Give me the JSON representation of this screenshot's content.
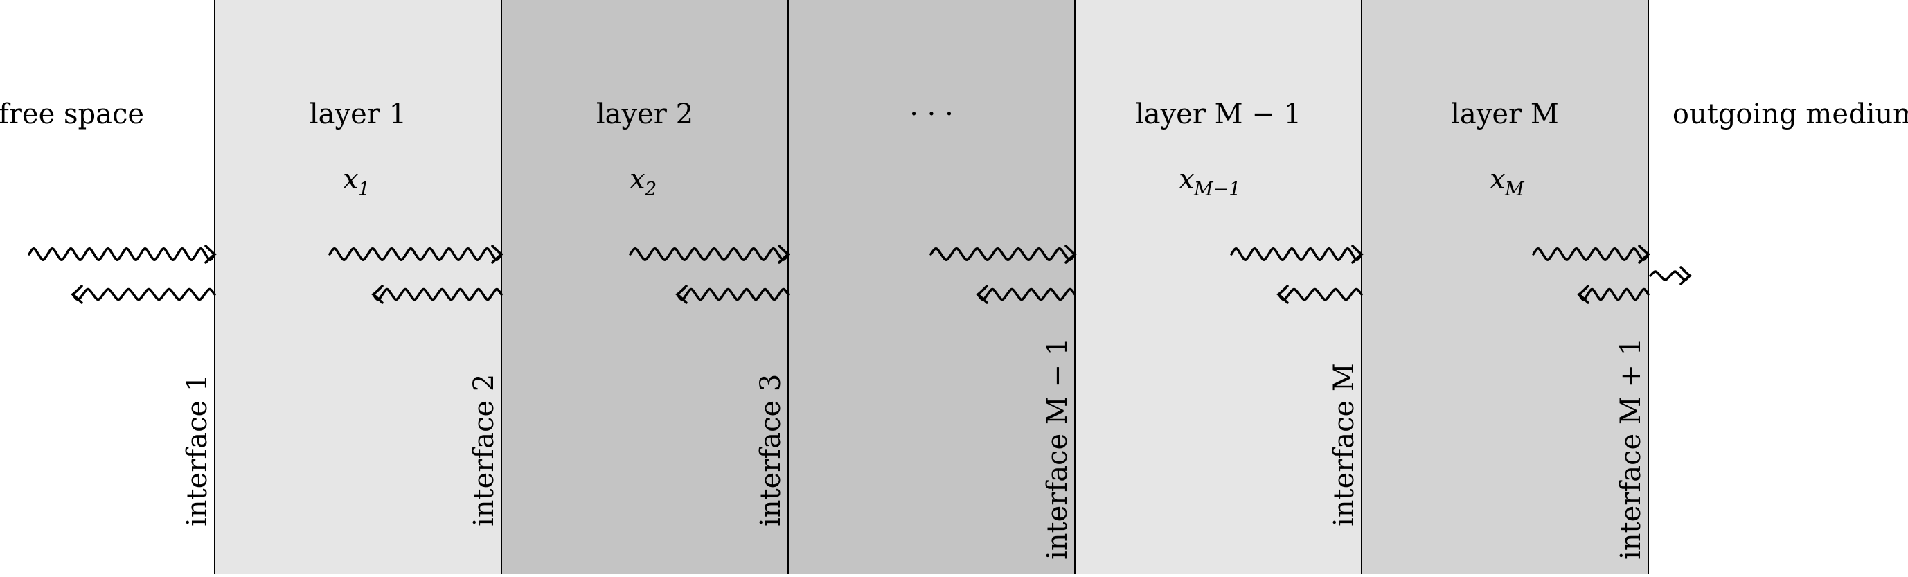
{
  "diagram": {
    "left_medium": "free space",
    "right_medium": "outgoing medium",
    "layers": [
      {
        "label": "layer 1",
        "var": "x",
        "sub": "1",
        "fill": "#e6e6e6"
      },
      {
        "label": "layer 2",
        "var": "x",
        "sub": "2",
        "fill": "#c4c4c4"
      },
      {
        "label": "· · ·",
        "var": "",
        "sub": "",
        "fill": "#c4c4c4"
      },
      {
        "label": "layer M − 1",
        "var": "x",
        "sub": "M−1",
        "fill": "#e6e6e6"
      },
      {
        "label": "layer M",
        "var": "x",
        "sub": "M",
        "fill": "#d3d3d3"
      }
    ],
    "interfaces": [
      "interface 1",
      "interface 2",
      "interface 3",
      "interface M − 1",
      "interface M",
      "interface M + 1"
    ]
  }
}
